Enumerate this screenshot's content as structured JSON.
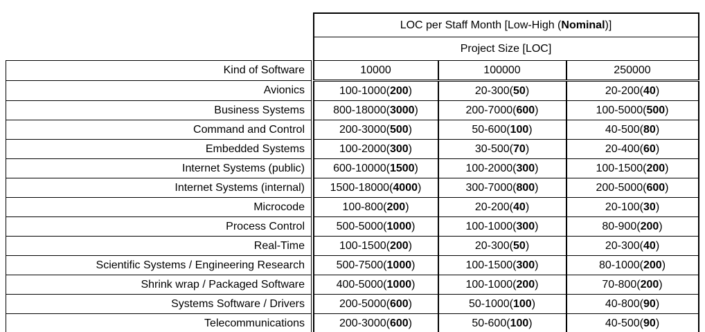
{
  "page": {
    "background_color": "#ffffff",
    "text_color": "#000000",
    "border_color": "#000000"
  },
  "table": {
    "title": {
      "prefix": "LOC per Staff Month [Low-High (",
      "bold": "Nominal",
      "suffix": ")]"
    },
    "subtitle": "Project Size [LOC]",
    "row_header": "Kind of Software",
    "sizes": [
      "10000",
      "100000",
      "250000"
    ],
    "rows": [
      {
        "label": "Avionics",
        "cells": [
          {
            "range": "100-1000",
            "nominal": "200"
          },
          {
            "range": "20-300",
            "nominal": "50"
          },
          {
            "range": "20-200",
            "nominal": "40"
          }
        ]
      },
      {
        "label": "Business Systems",
        "cells": [
          {
            "range": "800-18000",
            "nominal": "3000"
          },
          {
            "range": "200-7000",
            "nominal": "600"
          },
          {
            "range": "100-5000",
            "nominal": "500"
          }
        ]
      },
      {
        "label": "Command and Control",
        "cells": [
          {
            "range": "200-3000",
            "nominal": "500"
          },
          {
            "range": "50-600",
            "nominal": "100"
          },
          {
            "range": "40-500",
            "nominal": "80"
          }
        ]
      },
      {
        "label": "Embedded Systems",
        "cells": [
          {
            "range": "100-2000",
            "nominal": "300"
          },
          {
            "range": "30-500",
            "nominal": "70"
          },
          {
            "range": "20-400",
            "nominal": "60"
          }
        ]
      },
      {
        "label": "Internet Systems (public)",
        "cells": [
          {
            "range": "600-10000",
            "nominal": "1500"
          },
          {
            "range": "100-2000",
            "nominal": "300"
          },
          {
            "range": "100-1500",
            "nominal": "200"
          }
        ]
      },
      {
        "label": "Internet Systems (internal)",
        "cells": [
          {
            "range": "1500-18000",
            "nominal": "4000"
          },
          {
            "range": "300-7000",
            "nominal": "800"
          },
          {
            "range": "200-5000",
            "nominal": "600"
          }
        ]
      },
      {
        "label": "Microcode",
        "cells": [
          {
            "range": "100-800",
            "nominal": "200"
          },
          {
            "range": "20-200",
            "nominal": "40"
          },
          {
            "range": "20-100",
            "nominal": "30"
          }
        ]
      },
      {
        "label": "Process Control",
        "cells": [
          {
            "range": "500-5000",
            "nominal": "1000"
          },
          {
            "range": "100-1000",
            "nominal": "300"
          },
          {
            "range": "80-900",
            "nominal": "200"
          }
        ]
      },
      {
        "label": "Real-Time",
        "cells": [
          {
            "range": "100-1500",
            "nominal": "200"
          },
          {
            "range": "20-300",
            "nominal": "50"
          },
          {
            "range": "20-300",
            "nominal": "40"
          }
        ]
      },
      {
        "label": "Scientific Systems / Engineering Research",
        "cells": [
          {
            "range": "500-7500",
            "nominal": "1000"
          },
          {
            "range": "100-1500",
            "nominal": "300"
          },
          {
            "range": "80-1000",
            "nominal": "200"
          }
        ]
      },
      {
        "label": "Shrink wrap / Packaged Software",
        "cells": [
          {
            "range": "400-5000",
            "nominal": "1000"
          },
          {
            "range": "100-1000",
            "nominal": "200"
          },
          {
            "range": "70-800",
            "nominal": "200"
          }
        ]
      },
      {
        "label": "Systems Software / Drivers",
        "cells": [
          {
            "range": "200-5000",
            "nominal": "600"
          },
          {
            "range": "50-1000",
            "nominal": "100"
          },
          {
            "range": "40-800",
            "nominal": "90"
          }
        ]
      },
      {
        "label": "Telecommunications",
        "cells": [
          {
            "range": "200-3000",
            "nominal": "600"
          },
          {
            "range": "50-600",
            "nominal": "100"
          },
          {
            "range": "40-500",
            "nominal": "90"
          }
        ]
      }
    ]
  }
}
